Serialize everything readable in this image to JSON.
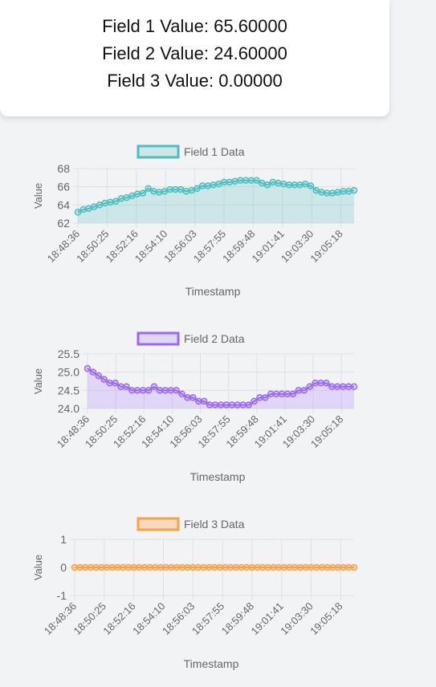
{
  "summary": {
    "field1": "Field 1 Value: 65.60000",
    "field2": "Field 2 Value: 24.60000",
    "field3": "Field 3 Value: 0.00000"
  },
  "chart_data": [
    {
      "type": "line",
      "legend": "Field 1 Data",
      "xlabel": "Timestamp",
      "ylabel": "Value",
      "ylim": [
        62,
        68
      ],
      "yticks": [
        62,
        64,
        66,
        68
      ],
      "color": "#4bbfbf",
      "fill": "rgba(75,191,191,0.22)",
      "area": true,
      "x_ticks": [
        "18:48:36",
        "18:50:25",
        "18:52:16",
        "18:54:10",
        "18:56:03",
        "18:57:55",
        "18:59:48",
        "19:01:41",
        "19:03:30",
        "19:05:18"
      ],
      "values": [
        63.2,
        63.5,
        63.6,
        63.8,
        64.0,
        64.2,
        64.3,
        64.4,
        64.7,
        64.8,
        65.0,
        65.2,
        65.3,
        65.8,
        65.5,
        65.4,
        65.5,
        65.7,
        65.7,
        65.7,
        65.5,
        65.6,
        65.8,
        66.1,
        66.1,
        66.2,
        66.3,
        66.5,
        66.5,
        66.6,
        66.7,
        66.7,
        66.7,
        66.7,
        66.4,
        66.2,
        66.5,
        66.4,
        66.3,
        66.2,
        66.2,
        66.2,
        66.3,
        66.1,
        65.6,
        65.4,
        65.3,
        65.3,
        65.4,
        65.5,
        65.5,
        65.6
      ]
    },
    {
      "type": "line",
      "legend": "Field 2 Data",
      "xlabel": "Timestamp",
      "ylabel": "Value",
      "ylim": [
        24.0,
        25.5
      ],
      "yticks": [
        24.0,
        24.5,
        25.0,
        25.5
      ],
      "color": "#9966ff",
      "fill": "rgba(153,102,255,0.2)",
      "area": true,
      "x_ticks": [
        "18:48:36",
        "18:50:25",
        "18:52:16",
        "18:54:10",
        "18:56:03",
        "18:57:55",
        "18:59:48",
        "19:01:41",
        "19:03:30",
        "19:05:18"
      ],
      "values": [
        25.1,
        25.0,
        24.9,
        24.8,
        24.7,
        24.7,
        24.6,
        24.6,
        24.5,
        24.5,
        24.5,
        24.5,
        24.6,
        24.5,
        24.5,
        24.5,
        24.5,
        24.4,
        24.3,
        24.3,
        24.2,
        24.2,
        24.1,
        24.1,
        24.1,
        24.1,
        24.1,
        24.1,
        24.1,
        24.1,
        24.2,
        24.3,
        24.3,
        24.4,
        24.4,
        24.4,
        24.4,
        24.4,
        24.5,
        24.5,
        24.6,
        24.7,
        24.7,
        24.7,
        24.6,
        24.6,
        24.6,
        24.6,
        24.6
      ]
    },
    {
      "type": "line",
      "legend": "Field 3 Data",
      "xlabel": "Timestamp",
      "ylabel": "Value",
      "ylim": [
        -1,
        1
      ],
      "yticks": [
        -1,
        0,
        1
      ],
      "color": "#ff9f40",
      "fill": "rgba(255,159,64,0.3)",
      "area": false,
      "x_ticks": [
        "18:48:36",
        "18:50:25",
        "18:52:16",
        "18:54:10",
        "18:56:03",
        "18:57:55",
        "18:59:48",
        "19:01:41",
        "19:03:30",
        "19:05:18"
      ],
      "values": [
        0,
        0,
        0,
        0,
        0,
        0,
        0,
        0,
        0,
        0,
        0,
        0,
        0,
        0,
        0,
        0,
        0,
        0,
        0,
        0,
        0,
        0,
        0,
        0,
        0,
        0,
        0,
        0,
        0,
        0,
        0,
        0,
        0,
        0,
        0,
        0,
        0,
        0,
        0,
        0,
        0,
        0,
        0,
        0,
        0,
        0,
        0,
        0,
        0,
        0,
        0,
        0,
        0
      ]
    }
  ]
}
